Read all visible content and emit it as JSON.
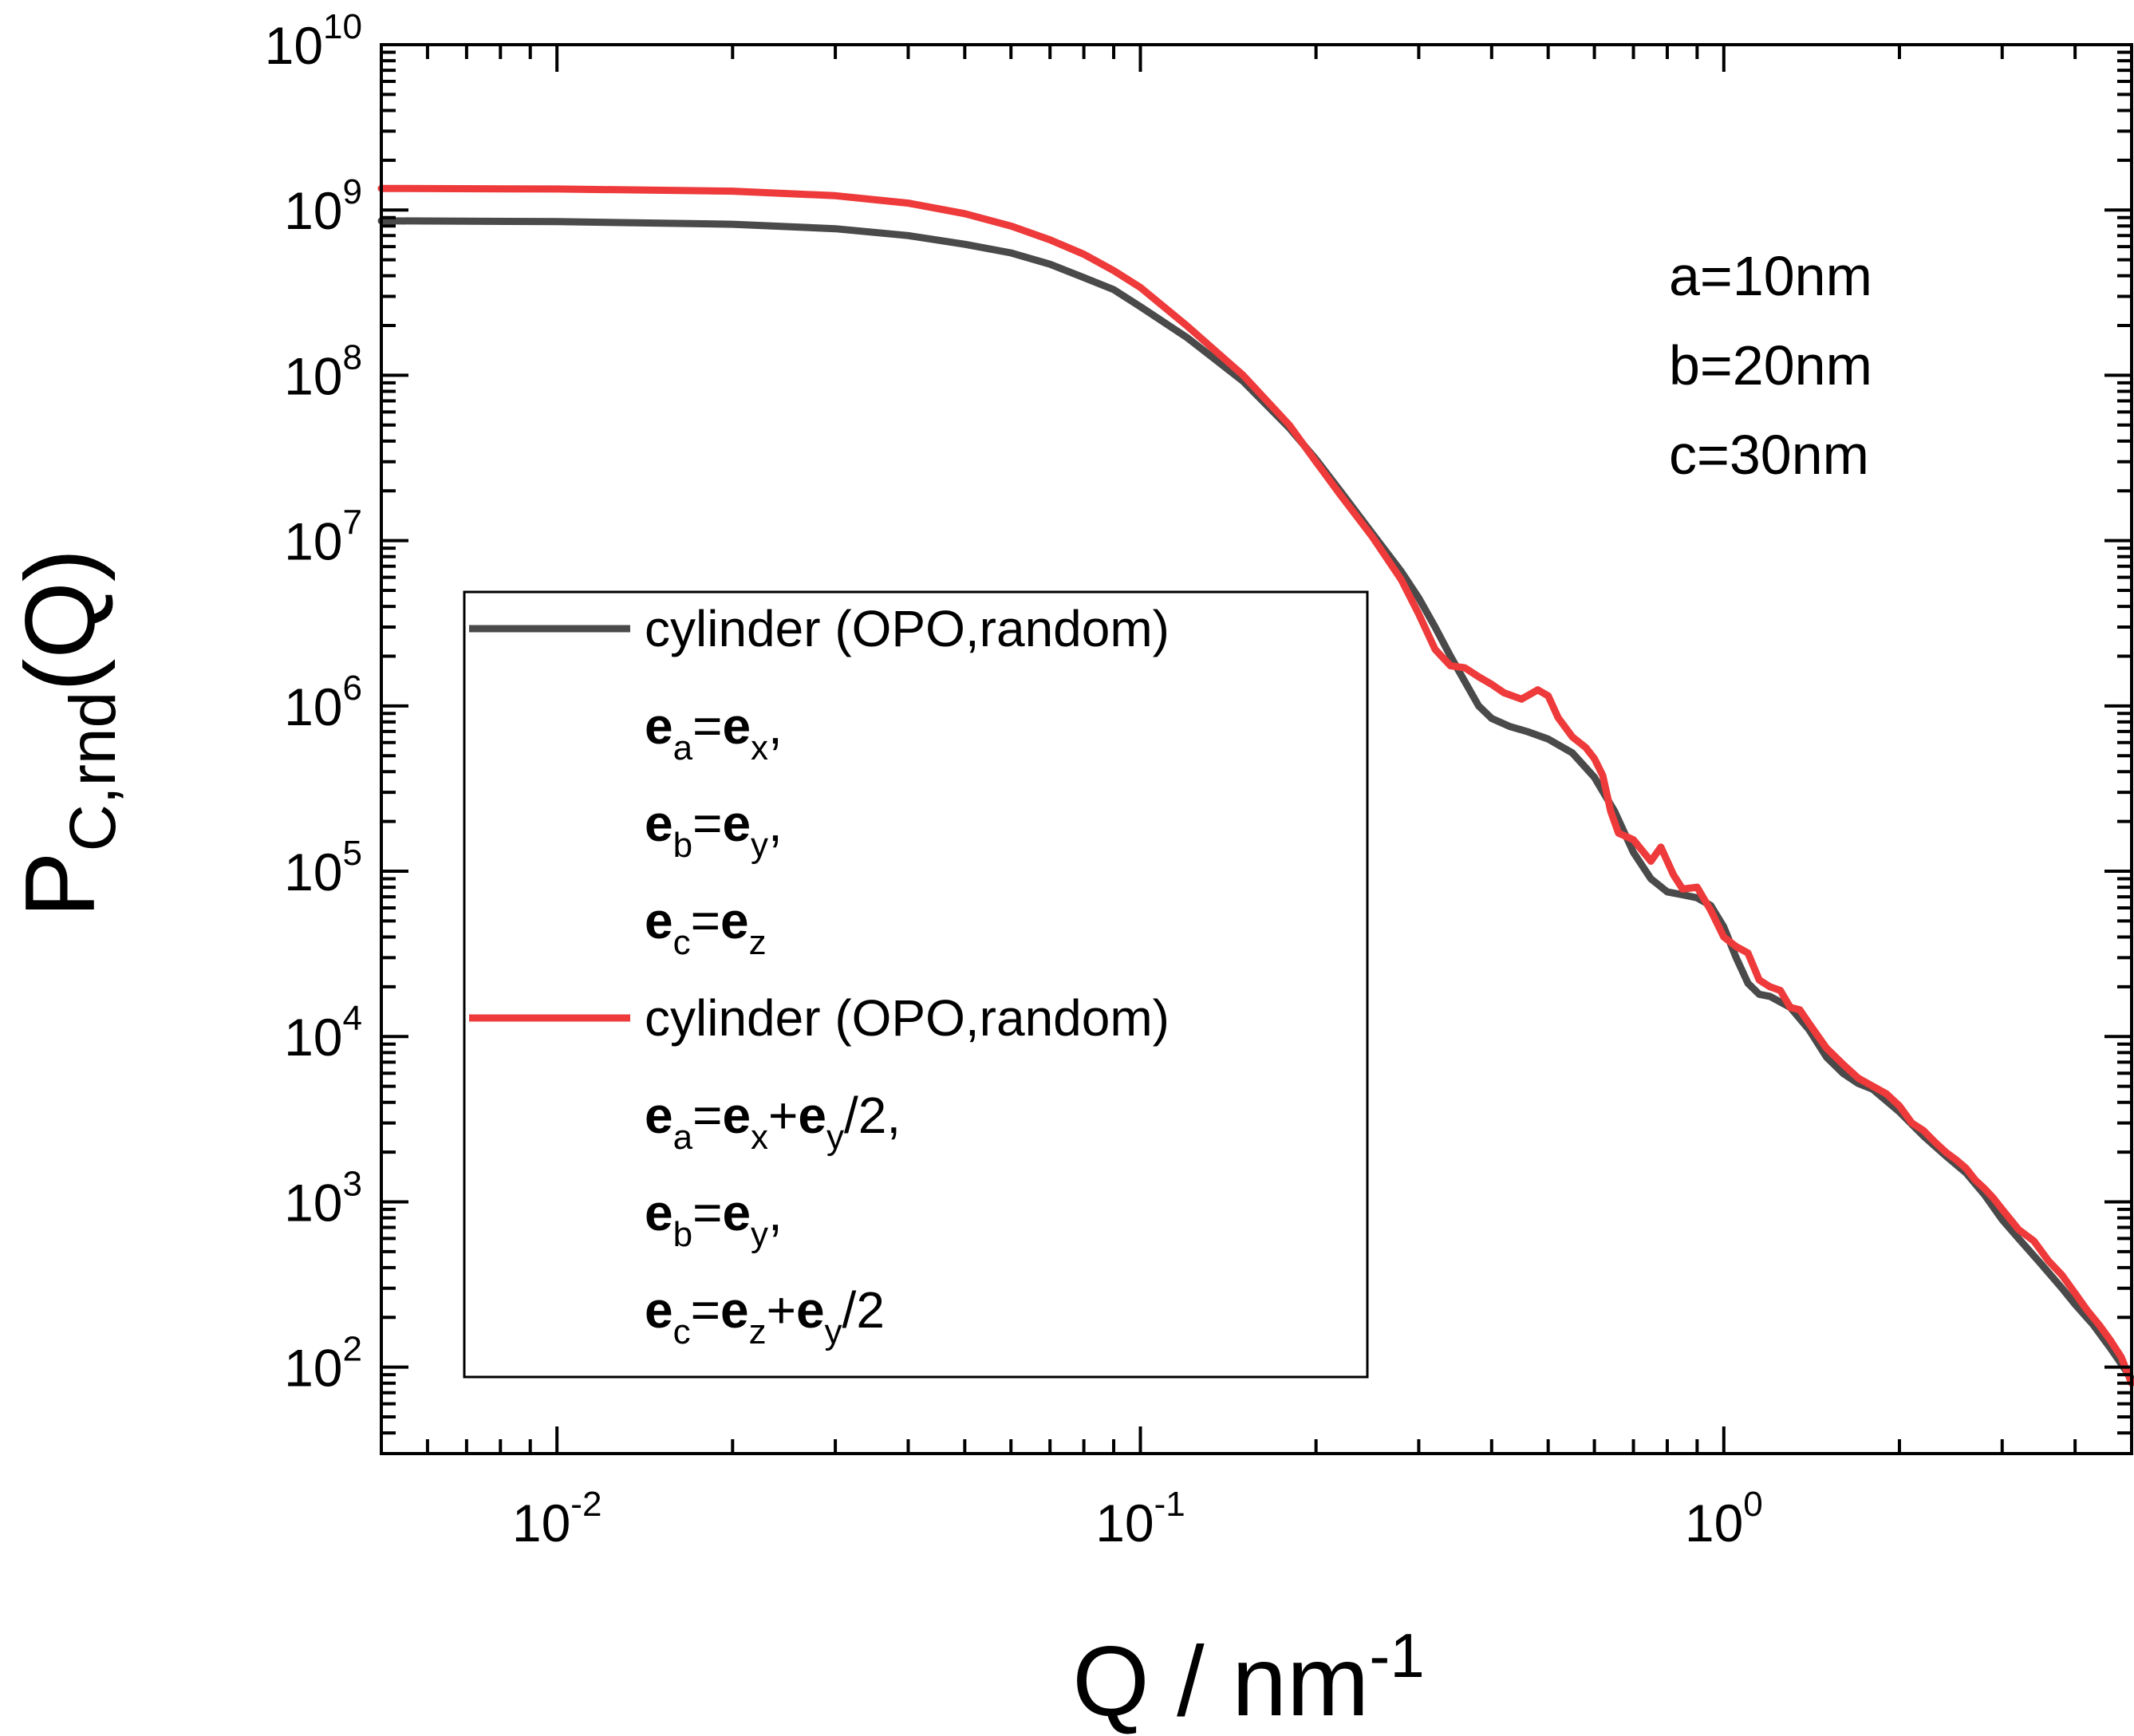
{
  "chart_data": {
    "type": "line",
    "scale": {
      "x": "log",
      "y": "log"
    },
    "xlim": [
      0.005,
      5
    ],
    "ylim": [
      30,
      10000000000.0
    ],
    "x_ticks": [
      {
        "base": "10",
        "exp": "-2",
        "value": 0.01
      },
      {
        "base": "10",
        "exp": "-1",
        "value": 0.1
      },
      {
        "base": "10",
        "exp": "0",
        "value": 1
      }
    ],
    "y_ticks": [
      {
        "base": "10",
        "exp": "2",
        "value": 100.0
      },
      {
        "base": "10",
        "exp": "3",
        "value": 1000.0
      },
      {
        "base": "10",
        "exp": "4",
        "value": 10000.0
      },
      {
        "base": "10",
        "exp": "5",
        "value": 100000.0
      },
      {
        "base": "10",
        "exp": "6",
        "value": 1000000.0
      },
      {
        "base": "10",
        "exp": "7",
        "value": 10000000.0
      },
      {
        "base": "10",
        "exp": "8",
        "value": 100000000.0
      },
      {
        "base": "10",
        "exp": "9",
        "value": 1000000000.0
      },
      {
        "base": "10",
        "exp": "10",
        "value": 10000000000.0
      }
    ],
    "xlabel": {
      "main": "Q / nm",
      "sup": "-1"
    },
    "ylabel": {
      "main": "P",
      "sub": "C,rnd",
      "tail": "(Q)"
    },
    "annotations": [
      "a=10nm",
      "b=20nm",
      "c=30nm"
    ],
    "grid": false,
    "legend_position": "lower-left",
    "series": [
      {
        "name": "cylinder (OPO,random)",
        "color": "#4a4a4a",
        "legend_lines": [
          [
            {
              "t": "e",
              "b": 1
            },
            {
              "t": "a",
              "s": 1
            },
            {
              "t": "="
            },
            {
              "t": "e",
              "b": 1
            },
            {
              "t": "x",
              "s": 1
            },
            {
              "t": ","
            }
          ],
          [
            {
              "t": "e",
              "b": 1
            },
            {
              "t": "b",
              "s": 1
            },
            {
              "t": "="
            },
            {
              "t": "e",
              "b": 1
            },
            {
              "t": "y",
              "s": 1
            },
            {
              "t": ","
            }
          ],
          [
            {
              "t": "e",
              "b": 1
            },
            {
              "t": "c",
              "s": 1
            },
            {
              "t": "="
            },
            {
              "t": "e",
              "b": 1
            },
            {
              "t": "z",
              "s": 1
            }
          ]
        ],
        "points": [
          [
            0.005,
            860000000.0
          ],
          [
            0.01,
            850000000.0
          ],
          [
            0.02,
            820000000.0
          ],
          [
            0.03,
            770000000.0
          ],
          [
            0.04,
            700000000.0
          ],
          [
            0.05,
            620000000.0
          ],
          [
            0.06,
            550000000.0
          ],
          [
            0.07,
            470000000.0
          ],
          [
            0.08,
            390000000.0
          ],
          [
            0.09,
            330000000.0
          ],
          [
            0.1,
            260000000.0
          ],
          [
            0.12,
            170000000.0
          ],
          [
            0.15,
            92000000.0
          ],
          [
            0.18,
            48000000.0
          ],
          [
            0.2,
            31000000.0
          ],
          [
            0.22,
            20000000.0
          ],
          [
            0.25,
            11000000.0
          ],
          [
            0.28,
            6500000.0
          ],
          [
            0.3,
            4500000.0
          ],
          [
            0.32,
            3000000.0
          ],
          [
            0.34,
            2000000.0
          ],
          [
            0.36,
            1400000.0
          ],
          [
            0.38,
            1000000.0
          ],
          [
            0.4,
            840000.0
          ],
          [
            0.43,
            750000.0
          ],
          [
            0.46,
            700000.0
          ],
          [
            0.5,
            630000.0
          ],
          [
            0.55,
            520000.0
          ],
          [
            0.6,
            370000.0
          ],
          [
            0.65,
            230000.0
          ],
          [
            0.7,
            130000.0
          ],
          [
            0.75,
            90000.0
          ],
          [
            0.8,
            75000.0
          ],
          [
            0.85,
            72000.0
          ],
          [
            0.9,
            69000.0
          ],
          [
            0.95,
            62000.0
          ],
          [
            1.0,
            46000.0
          ],
          [
            1.05,
            30000.0
          ],
          [
            1.1,
            21000.0
          ],
          [
            1.15,
            18000.0
          ],
          [
            1.2,
            17500.0
          ],
          [
            1.3,
            15000.0
          ],
          [
            1.4,
            11000.0
          ],
          [
            1.5,
            7500.0
          ],
          [
            1.6,
            6000.0
          ],
          [
            1.7,
            5200.0
          ],
          [
            1.8,
            4800.0
          ],
          [
            2.0,
            3500.0
          ],
          [
            2.2,
            2500.0
          ],
          [
            2.4,
            1900.0
          ],
          [
            2.6,
            1500.0
          ],
          [
            2.8,
            1100.0
          ],
          [
            3.0,
            780.0
          ],
          [
            3.2,
            600.0
          ],
          [
            3.5,
            420.0
          ],
          [
            3.8,
            300.0
          ],
          [
            4.0,
            240.0
          ],
          [
            4.3,
            180.0
          ],
          [
            4.6,
            130.0
          ],
          [
            5.0,
            85.0
          ]
        ]
      },
      {
        "name": "cylinder (OPO,random)",
        "color": "#ee3a3a",
        "legend_lines": [
          [
            {
              "t": "e",
              "b": 1
            },
            {
              "t": "a",
              "s": 1
            },
            {
              "t": "="
            },
            {
              "t": "e",
              "b": 1
            },
            {
              "t": "x",
              "s": 1
            },
            {
              "t": "+"
            },
            {
              "t": "e",
              "b": 1
            },
            {
              "t": "y",
              "s": 1
            },
            {
              "t": "/2,"
            }
          ],
          [
            {
              "t": "e",
              "b": 1
            },
            {
              "t": "b",
              "s": 1
            },
            {
              "t": "="
            },
            {
              "t": "e",
              "b": 1
            },
            {
              "t": "y",
              "s": 1
            },
            {
              "t": ","
            }
          ],
          [
            {
              "t": "e",
              "b": 1
            },
            {
              "t": "c",
              "s": 1
            },
            {
              "t": "="
            },
            {
              "t": "e",
              "b": 1
            },
            {
              "t": "z",
              "s": 1
            },
            {
              "t": "+"
            },
            {
              "t": "e",
              "b": 1
            },
            {
              "t": "y",
              "s": 1
            },
            {
              "t": "/2"
            }
          ]
        ],
        "points": [
          [
            0.005,
            1350000000.0
          ],
          [
            0.01,
            1340000000.0
          ],
          [
            0.02,
            1300000000.0
          ],
          [
            0.03,
            1220000000.0
          ],
          [
            0.04,
            1100000000.0
          ],
          [
            0.05,
            950000000.0
          ],
          [
            0.06,
            800000000.0
          ],
          [
            0.07,
            660000000.0
          ],
          [
            0.08,
            540000000.0
          ],
          [
            0.09,
            430000000.0
          ],
          [
            0.1,
            340000000.0
          ],
          [
            0.12,
            200000000.0
          ],
          [
            0.15,
            100000000.0
          ],
          [
            0.18,
            50000000.0
          ],
          [
            0.2,
            30000000.0
          ],
          [
            0.22,
            19000000.0
          ],
          [
            0.25,
            10500000.0
          ],
          [
            0.28,
            5800000.0
          ],
          [
            0.3,
            3600000.0
          ],
          [
            0.32,
            2200000.0
          ],
          [
            0.34,
            1750000.0
          ],
          [
            0.36,
            1700000.0
          ],
          [
            0.38,
            1500000.0
          ],
          [
            0.4,
            1350000.0
          ],
          [
            0.42,
            1200000.0
          ],
          [
            0.45,
            1100000.0
          ],
          [
            0.48,
            1250000.0
          ],
          [
            0.5,
            1150000.0
          ],
          [
            0.52,
            850000.0
          ],
          [
            0.55,
            650000.0
          ],
          [
            0.58,
            560000.0
          ],
          [
            0.6,
            480000.0
          ],
          [
            0.62,
            380000.0
          ],
          [
            0.64,
            230000.0
          ],
          [
            0.66,
            170000.0
          ],
          [
            0.7,
            155000.0
          ],
          [
            0.75,
            115000.0
          ],
          [
            0.78,
            140000.0
          ],
          [
            0.82,
            95000.0
          ],
          [
            0.85,
            78000.0
          ],
          [
            0.9,
            80000.0
          ],
          [
            0.95,
            58000.0
          ],
          [
            1.0,
            40000.0
          ],
          [
            1.05,
            35000.0
          ],
          [
            1.1,
            32000.0
          ],
          [
            1.15,
            22000.0
          ],
          [
            1.2,
            20000.0
          ],
          [
            1.25,
            19000.0
          ],
          [
            1.3,
            15000.0
          ],
          [
            1.35,
            14500.0
          ],
          [
            1.4,
            12000.0
          ],
          [
            1.5,
            8500.0
          ],
          [
            1.6,
            6800.0
          ],
          [
            1.7,
            5600.0
          ],
          [
            1.8,
            5000.0
          ],
          [
            1.9,
            4500.0
          ],
          [
            2.0,
            3800.0
          ],
          [
            2.1,
            3000.0
          ],
          [
            2.2,
            2700.0
          ],
          [
            2.3,
            2300.0
          ],
          [
            2.4,
            2000.0
          ],
          [
            2.5,
            1800.0
          ],
          [
            2.6,
            1600.0
          ],
          [
            2.7,
            1350.0
          ],
          [
            2.8,
            1200.0
          ],
          [
            2.9,
            1050.0
          ],
          [
            3.0,
            900.0
          ],
          [
            3.2,
            680.0
          ],
          [
            3.4,
            580.0
          ],
          [
            3.6,
            440.0
          ],
          [
            3.8,
            360.0
          ],
          [
            4.0,
            280.0
          ],
          [
            4.2,
            220.0
          ],
          [
            4.4,
            180.0
          ],
          [
            4.6,
            145.0
          ],
          [
            4.8,
            115.0
          ],
          [
            5.0,
            80.0
          ]
        ]
      }
    ]
  }
}
